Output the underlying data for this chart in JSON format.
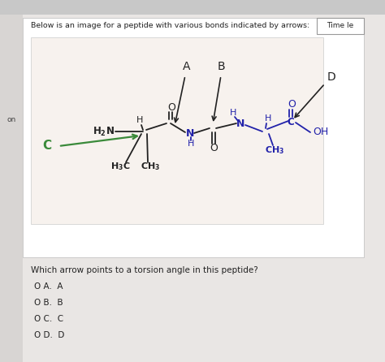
{
  "bg_outer": "#d0cece",
  "bg_browser": "#e8e8e8",
  "panel_bg": "#f5f0ee",
  "panel_border": "#cccccc",
  "white": "#ffffff",
  "black": "#222222",
  "dark_blue": "#2222aa",
  "green": "#3a8a3a",
  "title": "Below is an image for a peptide with various bonds indicated by arrows:",
  "time_label": "Time le",
  "question": "Which arrow points to a torsion angle in this peptide?",
  "options": [
    "O A.  A",
    "O B.  B",
    "O C.  C",
    "O D.  D"
  ]
}
